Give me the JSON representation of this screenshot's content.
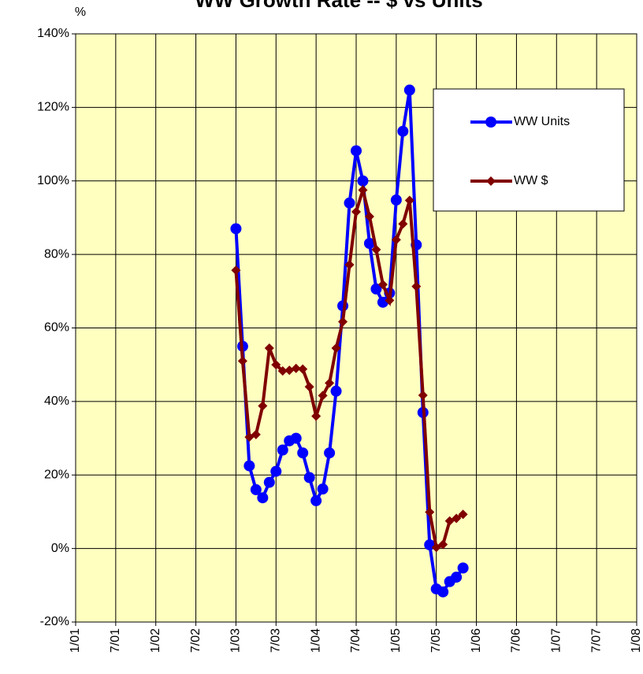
{
  "chart_data": {
    "type": "line",
    "title": "WW Growth Rate -- $ vs Units",
    "y_axis_label": "%",
    "x": [
      24,
      25,
      26,
      27,
      28,
      29,
      30,
      31,
      32,
      33,
      34,
      35,
      36,
      37,
      38,
      39,
      40,
      41,
      42,
      43,
      44,
      45,
      46,
      47,
      48,
      49,
      50,
      51,
      52,
      53,
      54,
      55,
      56,
      57,
      58
    ],
    "series": [
      {
        "name": "WW Units",
        "color": "#0000ff",
        "marker": "circle",
        "values": [
          87,
          55,
          22.5,
          16,
          13.8,
          18,
          21,
          26.8,
          29.3,
          30,
          26,
          19.3,
          13,
          16.2,
          26,
          42.8,
          66,
          94,
          108.2,
          100,
          83,
          70.6,
          67,
          69.5,
          94.8,
          113.5,
          124.7,
          82.6,
          37,
          1,
          -11,
          -11.8,
          -9,
          -7.8,
          -5.3
        ]
      },
      {
        "name": "WW $",
        "color": "#800000",
        "marker": "diamond",
        "values": [
          75.7,
          51,
          30.3,
          31,
          38.8,
          54.5,
          50,
          48.3,
          48.5,
          49,
          48.8,
          44,
          36,
          41.6,
          45,
          54.5,
          61.7,
          77.2,
          91.6,
          97.5,
          90.3,
          81.3,
          71.8,
          67.5,
          84,
          88.3,
          94.7,
          71.3,
          41.7,
          9.9,
          0.3,
          1.1,
          7.5,
          8.2,
          9.3
        ]
      }
    ],
    "xlim": [
      0,
      84
    ],
    "xticks": [
      {
        "value": 0,
        "label": "1/01"
      },
      {
        "value": 6,
        "label": "7/01"
      },
      {
        "value": 12,
        "label": "1/02"
      },
      {
        "value": 18,
        "label": "7/02"
      },
      {
        "value": 24,
        "label": "1/03"
      },
      {
        "value": 30,
        "label": "7/03"
      },
      {
        "value": 36,
        "label": "1/04"
      },
      {
        "value": 42,
        "label": "7/04"
      },
      {
        "value": 48,
        "label": "1/05"
      },
      {
        "value": 54,
        "label": "7/05"
      },
      {
        "value": 60,
        "label": "1/06"
      },
      {
        "value": 66,
        "label": "7/06"
      },
      {
        "value": 72,
        "label": "1/07"
      },
      {
        "value": 78,
        "label": "7/07"
      },
      {
        "value": 84,
        "label": "1/08"
      }
    ],
    "ylim": [
      -20,
      140
    ],
    "yticks": [
      {
        "value": -20,
        "label": "-20%"
      },
      {
        "value": 0,
        "label": "0%"
      },
      {
        "value": 20,
        "label": "20%"
      },
      {
        "value": 40,
        "label": "40%"
      },
      {
        "value": 60,
        "label": "60%"
      },
      {
        "value": 80,
        "label": "80%"
      },
      {
        "value": 100,
        "label": "100%"
      },
      {
        "value": 120,
        "label": "120%"
      },
      {
        "value": 140,
        "label": "140%"
      }
    ],
    "grid": true,
    "plot_background": "#ffffc0",
    "legend": "upper right"
  }
}
